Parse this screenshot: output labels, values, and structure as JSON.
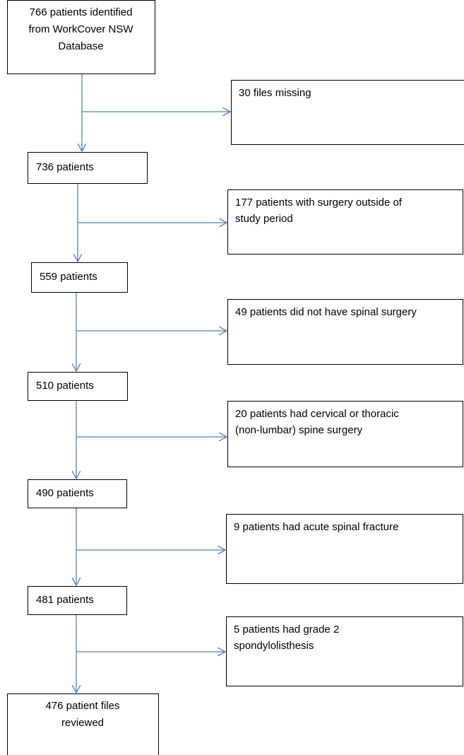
{
  "nodes": [
    {
      "lines": [
        "766 patients identified",
        "from WorkCover NSW",
        "Database"
      ]
    },
    {
      "lines": [
        "736 patients"
      ]
    },
    {
      "lines": [
        "559 patients"
      ]
    },
    {
      "lines": [
        "510 patients"
      ]
    },
    {
      "lines": [
        "490 patients"
      ]
    },
    {
      "lines": [
        "481 patients"
      ]
    },
    {
      "lines": [
        "476 patient files",
        "reviewed"
      ]
    }
  ],
  "exclusions": [
    {
      "lines": [
        "30 files missing"
      ]
    },
    {
      "lines": [
        "177 patients with surgery outside of",
        "study period"
      ]
    },
    {
      "lines": [
        "49 patients did not have spinal surgery"
      ]
    },
    {
      "lines": [
        "20 patients had cervical or thoracic",
        "(non-lumbar) spine surgery"
      ]
    },
    {
      "lines": [
        "9 patients had acute spinal fracture"
      ]
    },
    {
      "lines": [
        "5 patients had grade 2",
        "spondylolisthesis"
      ]
    }
  ]
}
